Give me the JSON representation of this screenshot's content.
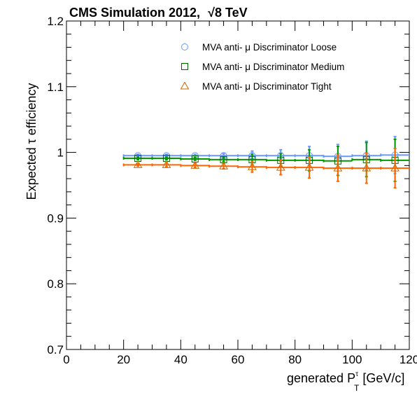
{
  "title": "CMS Simulation 2012,",
  "title_energy": "√8 TeV",
  "chart_data": {
    "type": "scatter",
    "xlabel": "generated P",
    "xlabel_sub": "T",
    "xlabel_sup": "τ",
    "xlabel_unit": " [GeV/c]",
    "ylabel": "Expected τ efficiency",
    "xlim": [
      0,
      120
    ],
    "ylim": [
      0.7,
      1.2
    ],
    "x_ticks": [
      "0",
      "20",
      "40",
      "60",
      "80",
      "100",
      "120"
    ],
    "y_ticks": [
      "0.7",
      "0.8",
      "0.9",
      "1",
      "1.1",
      "1.2"
    ],
    "grid": false,
    "legend_position": "top-right",
    "x": [
      25,
      35,
      45,
      55,
      65,
      75,
      85,
      95,
      105,
      115
    ],
    "x_halfwidth": 5,
    "series": [
      {
        "name": "MVA anti- μ Discriminator Loose",
        "marker": "circle",
        "color": "#6699ff",
        "values": [
          0.995,
          0.995,
          0.995,
          0.995,
          0.995,
          0.995,
          0.995,
          0.994,
          0.995,
          0.996
        ],
        "errors": [
          0.002,
          0.002,
          0.002,
          0.003,
          0.007,
          0.009,
          0.014,
          0.018,
          0.022,
          0.028
        ]
      },
      {
        "name": "MVA anti- μ Discriminator Medium",
        "marker": "square",
        "color": "#009900",
        "values": [
          0.991,
          0.991,
          0.99,
          0.989,
          0.989,
          0.988,
          0.988,
          0.987,
          0.989,
          0.988
        ],
        "errors": [
          0.002,
          0.002,
          0.002,
          0.003,
          0.008,
          0.01,
          0.016,
          0.022,
          0.026,
          0.032
        ]
      },
      {
        "name": "MVA anti- μ Discriminator Tight",
        "marker": "triangle",
        "color": "#ff6600",
        "values": [
          0.981,
          0.981,
          0.98,
          0.979,
          0.978,
          0.977,
          0.977,
          0.976,
          0.976,
          0.976
        ],
        "errors": [
          0.002,
          0.003,
          0.003,
          0.004,
          0.008,
          0.011,
          0.016,
          0.02,
          0.023,
          0.03
        ]
      }
    ]
  }
}
